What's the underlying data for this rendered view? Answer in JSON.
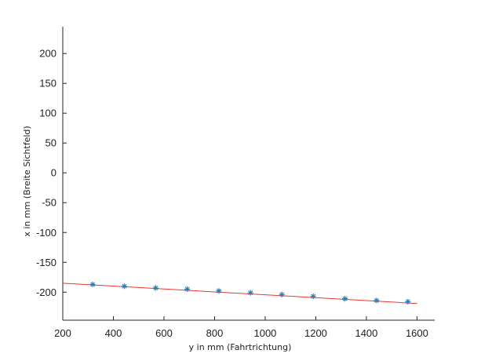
{
  "chart_data": {
    "type": "scatter",
    "title": "",
    "xlabel": "y in mm (Fahrtrichtung)",
    "ylabel": "x in mm (Breite Sichtfeld)",
    "xlim": [
      200,
      1670
    ],
    "ylim": [
      -247,
      245
    ],
    "xticks": [
      200,
      400,
      600,
      800,
      1000,
      1200,
      1400,
      1600
    ],
    "yticks": [
      -200,
      -150,
      -100,
      -50,
      0,
      50,
      100,
      150,
      200
    ],
    "grid": false,
    "legend": "none",
    "series": [
      {
        "marker": "asterisk",
        "color": "#2a7ab8",
        "x": [
          318,
          443,
          567,
          692,
          817,
          942,
          1066,
          1190,
          1315,
          1440,
          1564
        ],
        "y": [
          -187,
          -190,
          -193,
          -195,
          -198,
          -201,
          -204,
          -207,
          -211,
          -214,
          -216
        ]
      }
    ],
    "fit_line": {
      "color": "#e8372c",
      "x": [
        200,
        1600
      ],
      "y": [
        -185,
        -219
      ]
    }
  }
}
